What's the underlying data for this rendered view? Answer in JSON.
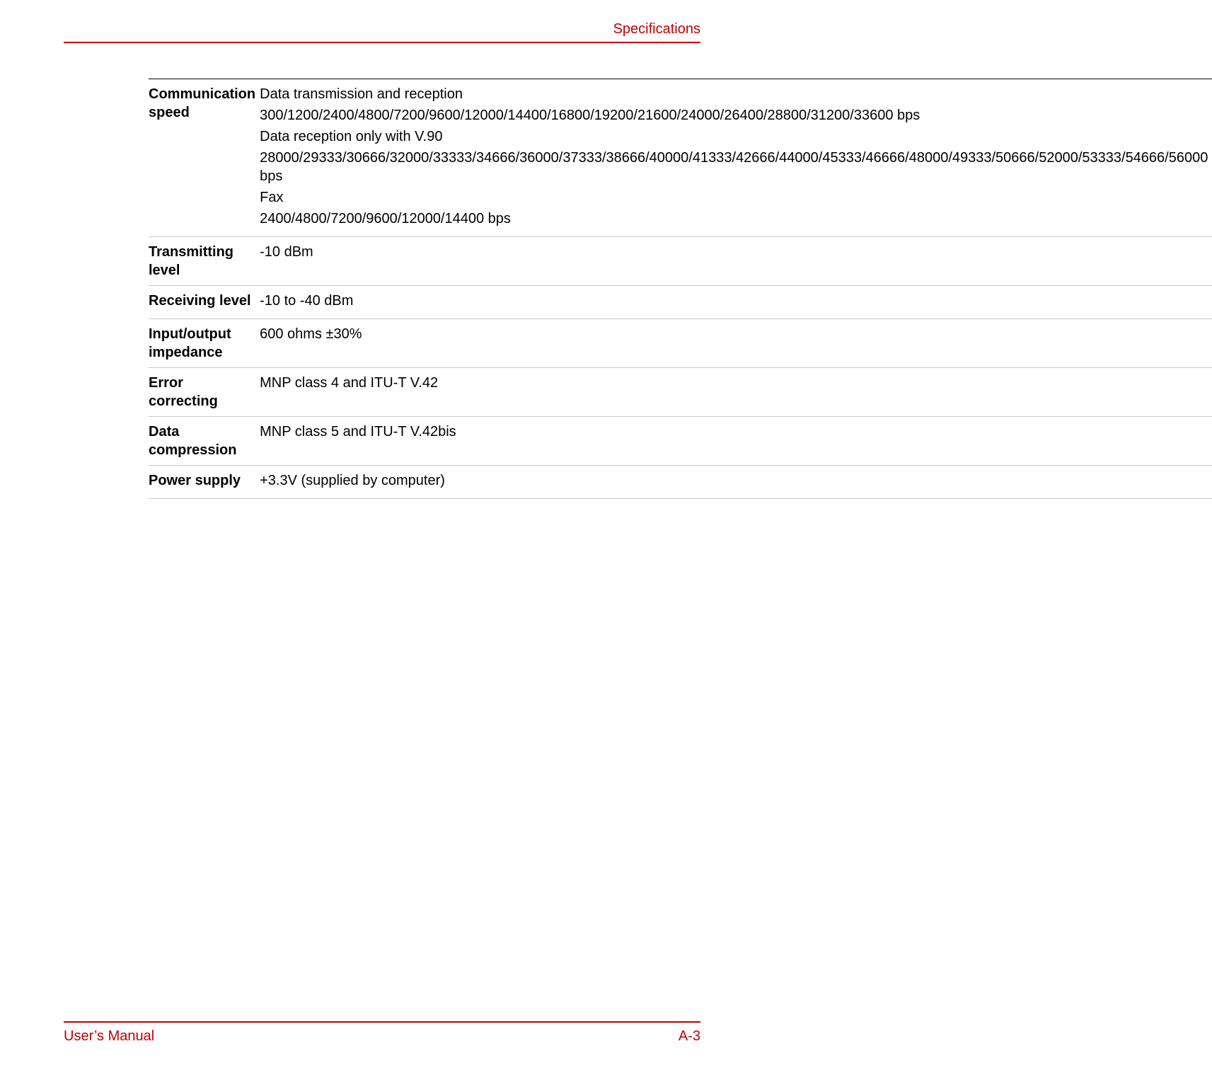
{
  "header": {
    "title": "Specifications"
  },
  "colors": {
    "accent": "#c00000",
    "rule_light": "#c9c9c9",
    "rule_dark": "#000000",
    "text": "#000000",
    "background": "#ffffff"
  },
  "typography": {
    "body_fontsize_pt": 15,
    "body_font_family": "Arial",
    "label_weight": "bold"
  },
  "table": {
    "rows": [
      {
        "label": "Communication speed",
        "paragraphs": [
          "Data transmission and reception",
          "300/1200/2400/4800/7200/9600/12000/14400/16800/19200/21600/24000/26400/28800/31200/33600 bps",
          "Data reception only with V.90",
          "28000/29333/30666/32000/33333/34666/36000/37333/38666/40000/41333/42666/44000/45333/46666/48000/49333/50666/52000/53333/54666/56000 bps",
          "Fax",
          "2400/4800/7200/9600/12000/14400 bps"
        ]
      },
      {
        "label": "Transmitting level",
        "paragraphs": [
          "-10 dBm"
        ]
      },
      {
        "label": "Receiving level",
        "paragraphs": [
          "-10 to -40 dBm"
        ]
      },
      {
        "label": "Input/output impedance",
        "paragraphs": [
          "600 ohms ±30%"
        ]
      },
      {
        "label": "Error correcting",
        "paragraphs": [
          "MNP class 4 and ITU-T V.42"
        ]
      },
      {
        "label": "Data compression",
        "paragraphs": [
          "MNP class 5 and ITU-T V.42bis"
        ]
      },
      {
        "label": "Power supply",
        "paragraphs": [
          "+3.3V (supplied by computer)"
        ]
      }
    ]
  },
  "footer": {
    "left": "User’s Manual",
    "right": "A-3"
  }
}
